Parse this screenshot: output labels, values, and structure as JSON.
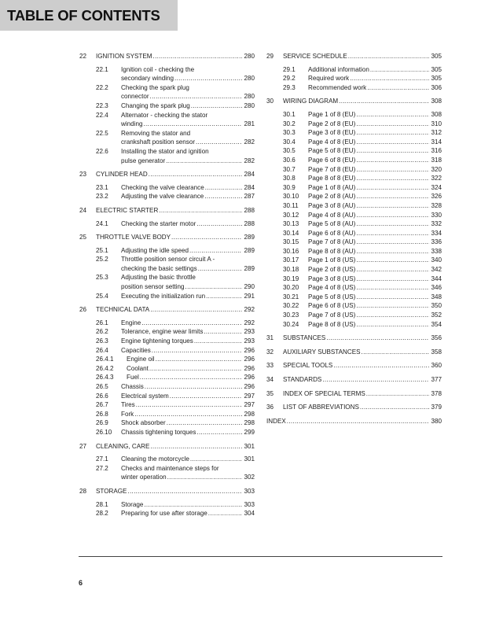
{
  "title": "TABLE OF CONTENTS",
  "page_number": "6",
  "columns": [
    [
      {
        "num": "22",
        "title": "IGNITION SYSTEM",
        "page": "280",
        "items": [
          {
            "num": "22.1",
            "lines": [
              "Ignition coil - checking the",
              "secondary winding"
            ],
            "page": "280"
          },
          {
            "num": "22.2",
            "lines": [
              "Checking the spark plug",
              "connector"
            ],
            "page": "280"
          },
          {
            "num": "22.3",
            "lines": [
              "Changing the spark plug"
            ],
            "page": "280"
          },
          {
            "num": "22.4",
            "lines": [
              "Alternator - checking the stator",
              "winding"
            ],
            "page": "281"
          },
          {
            "num": "22.5",
            "lines": [
              "Removing the stator and",
              "crankshaft position sensor"
            ],
            "page": "282"
          },
          {
            "num": "22.6",
            "lines": [
              "Installing the stator and ignition",
              "pulse generator"
            ],
            "page": "282"
          }
        ]
      },
      {
        "num": "23",
        "title": "CYLINDER HEAD",
        "page": "284",
        "items": [
          {
            "num": "23.1",
            "lines": [
              "Checking the valve clearance"
            ],
            "page": "284"
          },
          {
            "num": "23.2",
            "lines": [
              "Adjusting the valve clearance"
            ],
            "page": "287"
          }
        ]
      },
      {
        "num": "24",
        "title": "ELECTRIC STARTER",
        "page": "288",
        "items": [
          {
            "num": "24.1",
            "lines": [
              "Checking the starter motor"
            ],
            "page": "288"
          }
        ]
      },
      {
        "num": "25",
        "title": "THROTTLE VALVE BODY",
        "page": "289",
        "items": [
          {
            "num": "25.1",
            "lines": [
              "Adjusting the idle speed"
            ],
            "page": "289"
          },
          {
            "num": "25.2",
            "lines": [
              "Throttle position sensor circuit A -",
              "checking the basic settings"
            ],
            "page": "289"
          },
          {
            "num": "25.3",
            "lines": [
              "Adjusting the basic throttle",
              "position sensor setting"
            ],
            "page": "290"
          },
          {
            "num": "25.4",
            "lines": [
              "Executing the initialization run"
            ],
            "page": "291"
          }
        ]
      },
      {
        "num": "26",
        "title": "TECHNICAL DATA",
        "page": "292",
        "items": [
          {
            "num": "26.1",
            "lines": [
              "Engine"
            ],
            "page": "292"
          },
          {
            "num": "26.2",
            "lines": [
              "Tolerance, engine wear limits"
            ],
            "page": "293"
          },
          {
            "num": "26.3",
            "lines": [
              "Engine tightening torques"
            ],
            "page": "293"
          },
          {
            "num": "26.4",
            "lines": [
              "Capacities"
            ],
            "page": "296"
          },
          {
            "num": "26.4.1",
            "lines": [
              "Engine oil"
            ],
            "page": "296",
            "level": 3
          },
          {
            "num": "26.4.2",
            "lines": [
              "Coolant"
            ],
            "page": "296",
            "level": 3
          },
          {
            "num": "26.4.3",
            "lines": [
              "Fuel"
            ],
            "page": "296",
            "level": 3
          },
          {
            "num": "26.5",
            "lines": [
              "Chassis"
            ],
            "page": "296"
          },
          {
            "num": "26.6",
            "lines": [
              "Electrical system"
            ],
            "page": "297"
          },
          {
            "num": "26.7",
            "lines": [
              "Tires"
            ],
            "page": "297"
          },
          {
            "num": "26.8",
            "lines": [
              "Fork"
            ],
            "page": "298"
          },
          {
            "num": "26.9",
            "lines": [
              "Shock absorber"
            ],
            "page": "298"
          },
          {
            "num": "26.10",
            "lines": [
              "Chassis tightening torques"
            ],
            "page": "299"
          }
        ]
      },
      {
        "num": "27",
        "title": "CLEANING, CARE",
        "page": "301",
        "items": [
          {
            "num": "27.1",
            "lines": [
              "Cleaning the motorcycle"
            ],
            "page": "301"
          },
          {
            "num": "27.2",
            "lines": [
              "Checks and maintenance steps for",
              "winter operation"
            ],
            "page": "302"
          }
        ]
      },
      {
        "num": "28",
        "title": "STORAGE",
        "page": "303",
        "items": [
          {
            "num": "28.1",
            "lines": [
              "Storage"
            ],
            "page": "303"
          },
          {
            "num": "28.2",
            "lines": [
              "Preparing for use after storage"
            ],
            "page": "304"
          }
        ]
      }
    ],
    [
      {
        "num": "29",
        "title": "SERVICE SCHEDULE",
        "page": "305",
        "items": [
          {
            "num": "29.1",
            "lines": [
              "Additional information"
            ],
            "page": "305"
          },
          {
            "num": "29.2",
            "lines": [
              "Required work"
            ],
            "page": "305"
          },
          {
            "num": "29.3",
            "lines": [
              "Recommended work"
            ],
            "page": "306"
          }
        ]
      },
      {
        "num": "30",
        "title": "WIRING DIAGRAM",
        "page": "308",
        "items": [
          {
            "num": "30.1",
            "lines": [
              "Page 1 of 8 (EU)"
            ],
            "page": "308"
          },
          {
            "num": "30.2",
            "lines": [
              "Page 2 of 8 (EU)"
            ],
            "page": "310"
          },
          {
            "num": "30.3",
            "lines": [
              "Page 3 of 8 (EU)"
            ],
            "page": "312"
          },
          {
            "num": "30.4",
            "lines": [
              "Page 4 of 8 (EU)"
            ],
            "page": "314"
          },
          {
            "num": "30.5",
            "lines": [
              "Page 5 of 8 (EU)"
            ],
            "page": "316"
          },
          {
            "num": "30.6",
            "lines": [
              "Page 6 of 8 (EU)"
            ],
            "page": "318"
          },
          {
            "num": "30.7",
            "lines": [
              "Page 7 of 8 (EU)"
            ],
            "page": "320"
          },
          {
            "num": "30.8",
            "lines": [
              "Page 8 of 8 (EU)"
            ],
            "page": "322"
          },
          {
            "num": "30.9",
            "lines": [
              "Page 1 of 8 (AU)"
            ],
            "page": "324"
          },
          {
            "num": "30.10",
            "lines": [
              "Page 2 of 8 (AU)"
            ],
            "page": "326"
          },
          {
            "num": "30.11",
            "lines": [
              "Page 3 of 8 (AU)"
            ],
            "page": "328"
          },
          {
            "num": "30.12",
            "lines": [
              "Page 4 of 8 (AU)"
            ],
            "page": "330"
          },
          {
            "num": "30.13",
            "lines": [
              "Page 5 of 8 (AU)"
            ],
            "page": "332"
          },
          {
            "num": "30.14",
            "lines": [
              "Page 6 of 8 (AU)"
            ],
            "page": "334"
          },
          {
            "num": "30.15",
            "lines": [
              "Page 7 of 8 (AU)"
            ],
            "page": "336"
          },
          {
            "num": "30.16",
            "lines": [
              "Page 8 of 8 (AU)"
            ],
            "page": "338"
          },
          {
            "num": "30.17",
            "lines": [
              "Page 1 of 8 (US)"
            ],
            "page": "340"
          },
          {
            "num": "30.18",
            "lines": [
              "Page 2 of 8 (US)"
            ],
            "page": "342"
          },
          {
            "num": "30.19",
            "lines": [
              "Page 3 of 8 (US)"
            ],
            "page": "344"
          },
          {
            "num": "30.20",
            "lines": [
              "Page 4 of 8 (US)"
            ],
            "page": "346"
          },
          {
            "num": "30.21",
            "lines": [
              "Page 5 of 8 (US)"
            ],
            "page": "348"
          },
          {
            "num": "30.22",
            "lines": [
              "Page 6 of 8 (US)"
            ],
            "page": "350"
          },
          {
            "num": "30.23",
            "lines": [
              "Page 7 of 8 (US)"
            ],
            "page": "352"
          },
          {
            "num": "30.24",
            "lines": [
              "Page 8 of 8 (US)"
            ],
            "page": "354"
          }
        ]
      },
      {
        "num": "31",
        "title": "SUBSTANCES",
        "page": "356",
        "items": []
      },
      {
        "num": "32",
        "title": "AUXILIARY SUBSTANCES",
        "page": "358",
        "items": []
      },
      {
        "num": "33",
        "title": "SPECIAL TOOLS",
        "page": "360",
        "items": []
      },
      {
        "num": "34",
        "title": "STANDARDS",
        "page": "377",
        "items": []
      },
      {
        "num": "35",
        "title": "INDEX OF SPECIAL TERMS",
        "page": "378",
        "items": []
      },
      {
        "num": "36",
        "title": "LIST OF ABBREVIATIONS",
        "page": "379",
        "items": []
      },
      {
        "num": "",
        "title": "INDEX",
        "page": "380",
        "items": []
      }
    ]
  ]
}
